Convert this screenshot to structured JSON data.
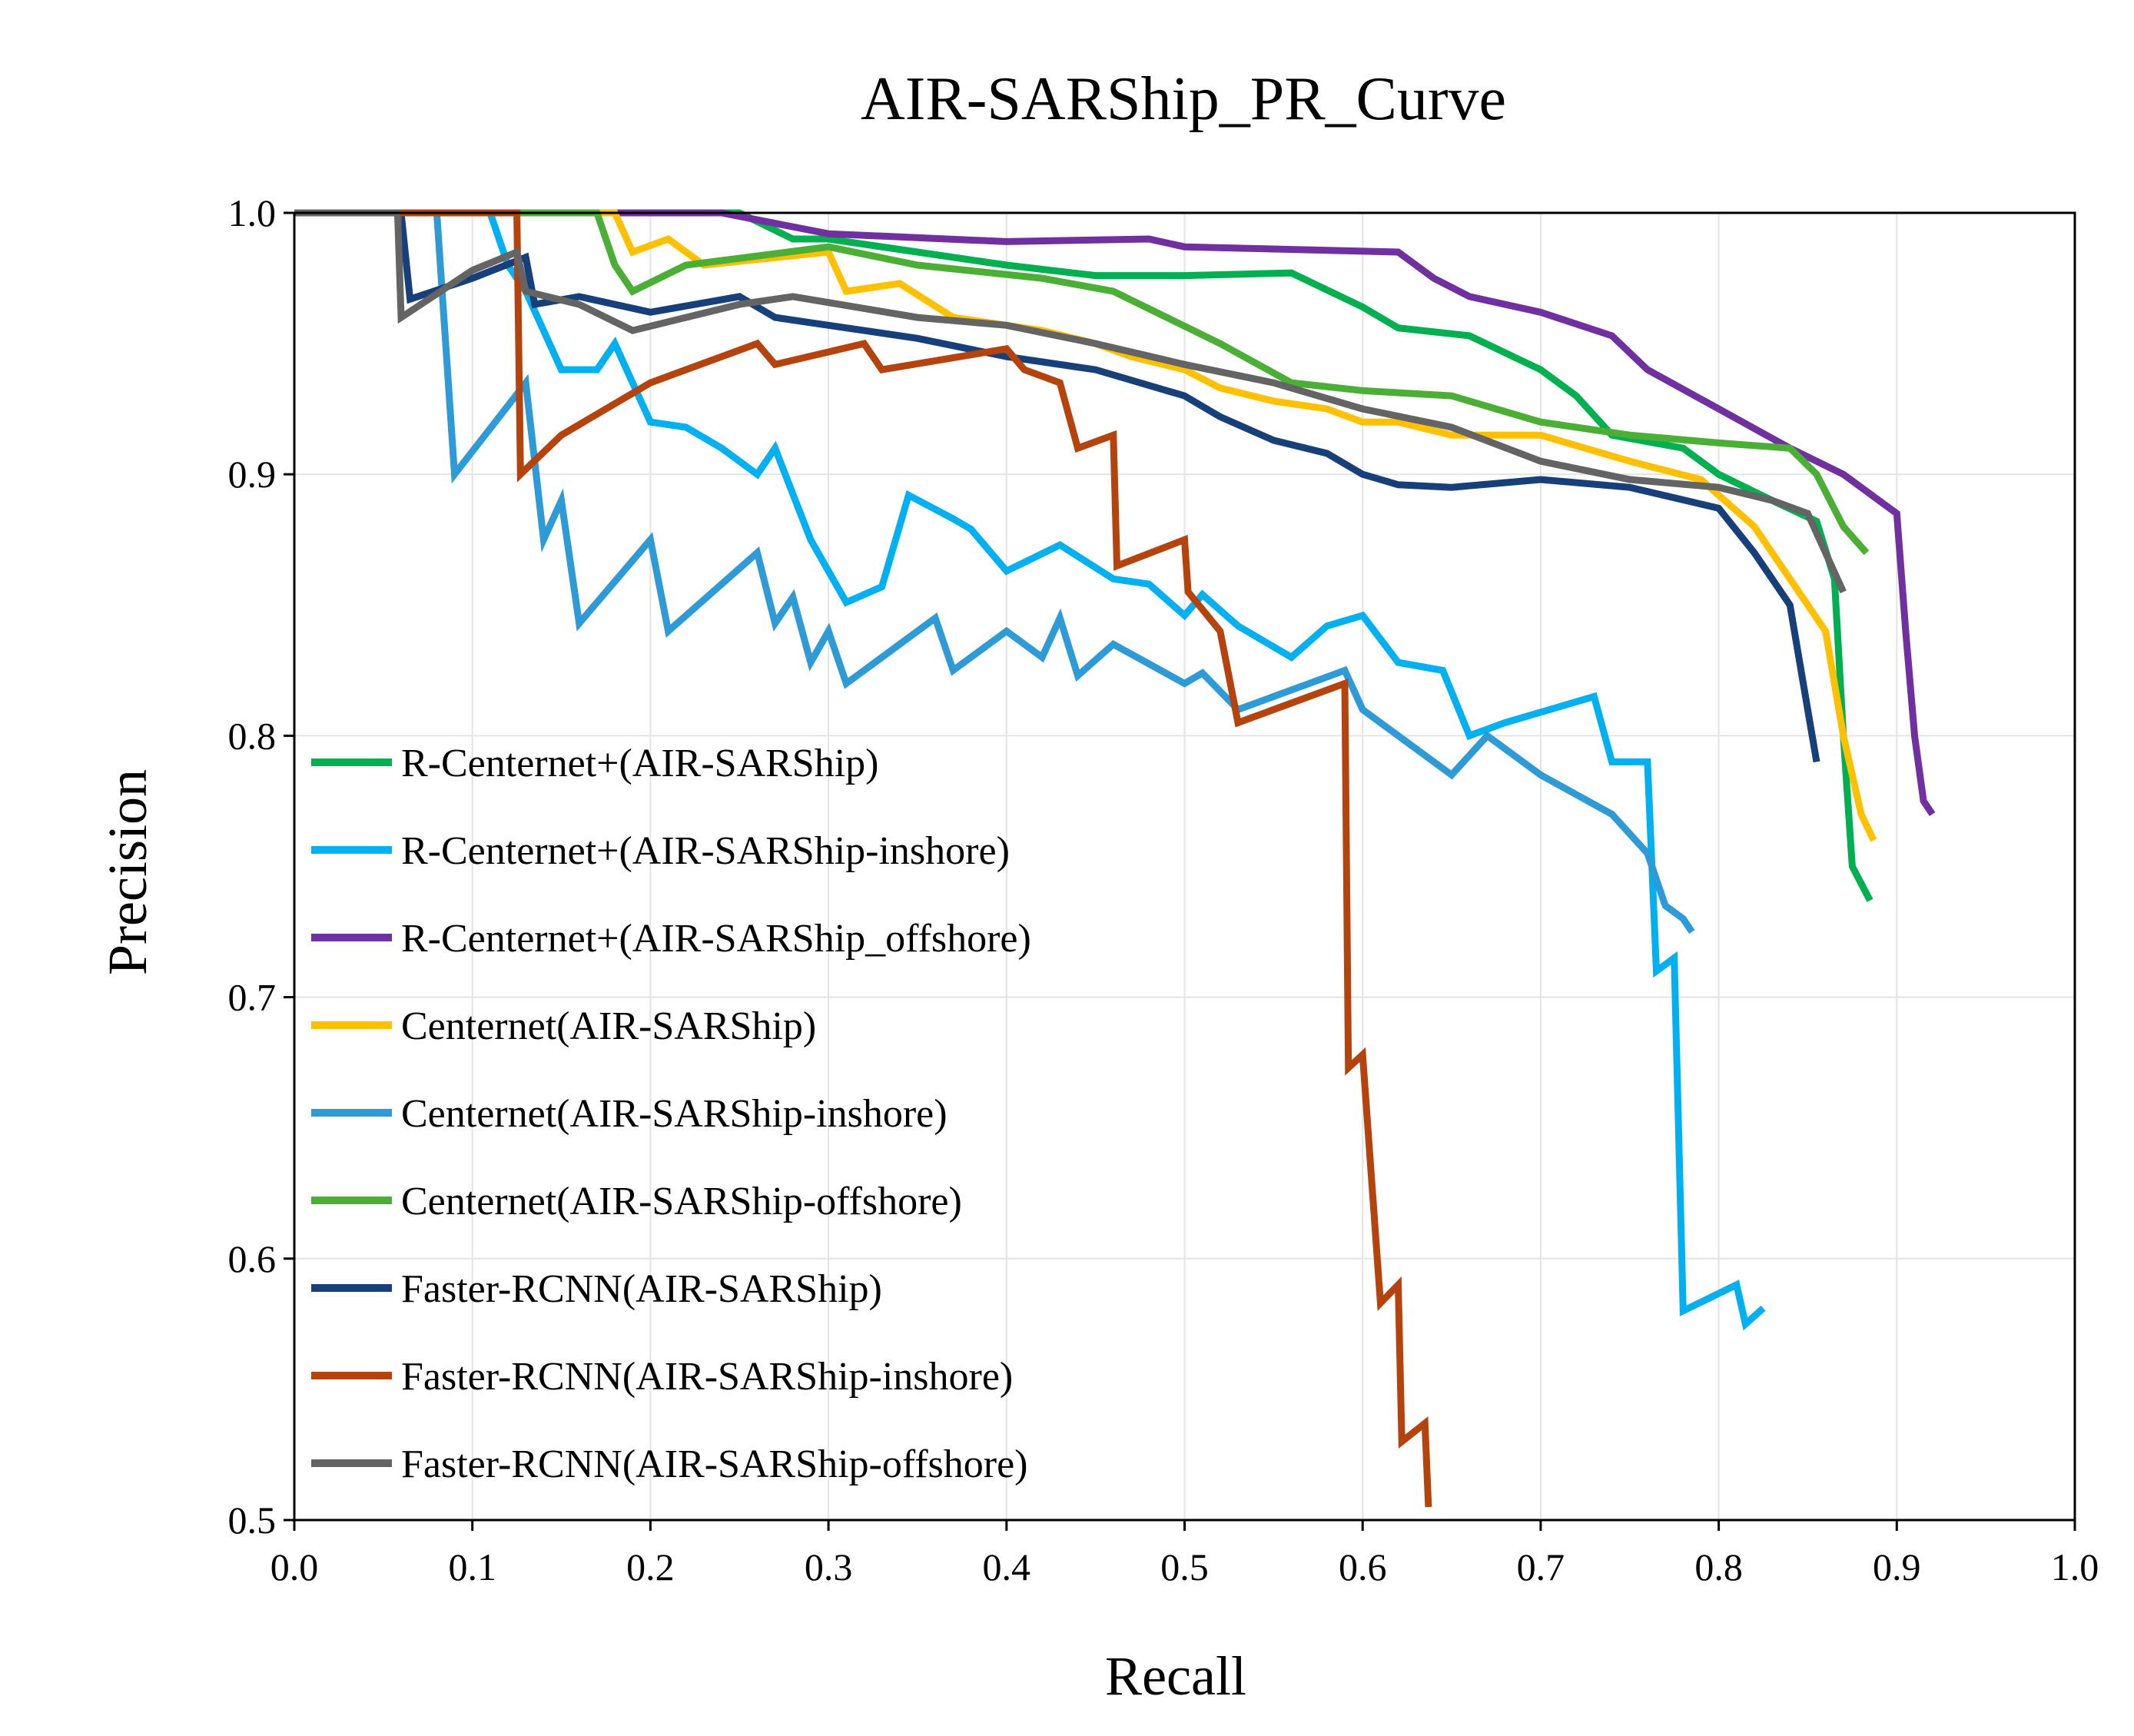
{
  "chart_data": {
    "type": "line",
    "title": "AIR-SARShip_PR_Curve",
    "xlabel": "Recall",
    "ylabel": "Precision",
    "xlim": [
      0.0,
      1.0
    ],
    "ylim": [
      0.5,
      1.0
    ],
    "xticks": [
      "0.0",
      "0.1",
      "0.2",
      "0.3",
      "0.4",
      "0.5",
      "0.6",
      "0.7",
      "0.8",
      "0.9",
      "1.0"
    ],
    "yticks": [
      "0.5",
      "0.6",
      "0.7",
      "0.8",
      "0.9",
      "1.0"
    ],
    "grid": true,
    "legend_position": "left",
    "series": [
      {
        "name": "R-Centernet+(AIR-SARShip)",
        "color": "#00b050",
        "points": [
          [
            0.0,
            1.0
          ],
          [
            0.25,
            1.0
          ],
          [
            0.28,
            0.99
          ],
          [
            0.3,
            0.99
          ],
          [
            0.35,
            0.985
          ],
          [
            0.4,
            0.98
          ],
          [
            0.45,
            0.976
          ],
          [
            0.5,
            0.976
          ],
          [
            0.56,
            0.977
          ],
          [
            0.6,
            0.964
          ],
          [
            0.62,
            0.956
          ],
          [
            0.66,
            0.953
          ],
          [
            0.7,
            0.94
          ],
          [
            0.72,
            0.93
          ],
          [
            0.74,
            0.915
          ],
          [
            0.78,
            0.91
          ],
          [
            0.8,
            0.9
          ],
          [
            0.83,
            0.89
          ],
          [
            0.855,
            0.882
          ],
          [
            0.865,
            0.86
          ],
          [
            0.87,
            0.8
          ],
          [
            0.875,
            0.75
          ],
          [
            0.885,
            0.737
          ]
        ]
      },
      {
        "name": "R-Centernet+(AIR-SARShip-inshore)",
        "color": "#00b0f0",
        "points": [
          [
            0.0,
            1.0
          ],
          [
            0.11,
            1.0
          ],
          [
            0.12,
            0.98
          ],
          [
            0.13,
            0.97
          ],
          [
            0.15,
            0.94
          ],
          [
            0.17,
            0.94
          ],
          [
            0.18,
            0.95
          ],
          [
            0.2,
            0.92
          ],
          [
            0.22,
            0.918
          ],
          [
            0.24,
            0.91
          ],
          [
            0.26,
            0.9
          ],
          [
            0.27,
            0.91
          ],
          [
            0.29,
            0.875
          ],
          [
            0.31,
            0.851
          ],
          [
            0.33,
            0.857
          ],
          [
            0.345,
            0.892
          ],
          [
            0.37,
            0.883
          ],
          [
            0.38,
            0.879
          ],
          [
            0.4,
            0.863
          ],
          [
            0.43,
            0.873
          ],
          [
            0.46,
            0.86
          ],
          [
            0.48,
            0.858
          ],
          [
            0.5,
            0.846
          ],
          [
            0.51,
            0.854
          ],
          [
            0.53,
            0.842
          ],
          [
            0.56,
            0.83
          ],
          [
            0.58,
            0.842
          ],
          [
            0.6,
            0.846
          ],
          [
            0.62,
            0.828
          ],
          [
            0.645,
            0.825
          ],
          [
            0.66,
            0.8
          ],
          [
            0.68,
            0.805
          ],
          [
            0.73,
            0.815
          ],
          [
            0.74,
            0.79
          ],
          [
            0.76,
            0.79
          ],
          [
            0.765,
            0.71
          ],
          [
            0.775,
            0.715
          ],
          [
            0.78,
            0.58
          ],
          [
            0.81,
            0.59
          ],
          [
            0.815,
            0.575
          ],
          [
            0.825,
            0.581
          ]
        ]
      },
      {
        "name": "R-Centernet+(AIR-SARShip_offshore)",
        "color": "#7030a0",
        "points": [
          [
            0.0,
            1.0
          ],
          [
            0.24,
            1.0
          ],
          [
            0.3,
            0.992
          ],
          [
            0.4,
            0.989
          ],
          [
            0.48,
            0.99
          ],
          [
            0.5,
            0.987
          ],
          [
            0.62,
            0.985
          ],
          [
            0.64,
            0.975
          ],
          [
            0.66,
            0.968
          ],
          [
            0.7,
            0.962
          ],
          [
            0.74,
            0.953
          ],
          [
            0.76,
            0.94
          ],
          [
            0.8,
            0.925
          ],
          [
            0.84,
            0.91
          ],
          [
            0.87,
            0.9
          ],
          [
            0.89,
            0.89
          ],
          [
            0.9,
            0.885
          ],
          [
            0.905,
            0.84
          ],
          [
            0.91,
            0.8
          ],
          [
            0.915,
            0.775
          ],
          [
            0.92,
            0.77
          ]
        ]
      },
      {
        "name": "Centernet(AIR-SARShip)",
        "color": "#ffc000",
        "points": [
          [
            0.0,
            1.0
          ],
          [
            0.18,
            1.0
          ],
          [
            0.19,
            0.985
          ],
          [
            0.21,
            0.99
          ],
          [
            0.23,
            0.98
          ],
          [
            0.3,
            0.985
          ],
          [
            0.31,
            0.97
          ],
          [
            0.34,
            0.973
          ],
          [
            0.37,
            0.96
          ],
          [
            0.42,
            0.955
          ],
          [
            0.45,
            0.95
          ],
          [
            0.47,
            0.945
          ],
          [
            0.5,
            0.94
          ],
          [
            0.52,
            0.933
          ],
          [
            0.55,
            0.928
          ],
          [
            0.58,
            0.925
          ],
          [
            0.6,
            0.92
          ],
          [
            0.62,
            0.92
          ],
          [
            0.65,
            0.915
          ],
          [
            0.7,
            0.915
          ],
          [
            0.75,
            0.905
          ],
          [
            0.79,
            0.898
          ],
          [
            0.82,
            0.88
          ],
          [
            0.84,
            0.86
          ],
          [
            0.86,
            0.84
          ],
          [
            0.87,
            0.8
          ],
          [
            0.88,
            0.77
          ],
          [
            0.887,
            0.76
          ]
        ]
      },
      {
        "name": "Centernet(AIR-SARShip-inshore)",
        "color": "#2e9bd6",
        "points": [
          [
            0.0,
            1.0
          ],
          [
            0.08,
            1.0
          ],
          [
            0.09,
            0.9
          ],
          [
            0.13,
            0.935
          ],
          [
            0.14,
            0.875
          ],
          [
            0.15,
            0.89
          ],
          [
            0.16,
            0.843
          ],
          [
            0.2,
            0.875
          ],
          [
            0.21,
            0.84
          ],
          [
            0.26,
            0.87
          ],
          [
            0.27,
            0.843
          ],
          [
            0.28,
            0.853
          ],
          [
            0.29,
            0.828
          ],
          [
            0.3,
            0.84
          ],
          [
            0.31,
            0.82
          ],
          [
            0.36,
            0.845
          ],
          [
            0.37,
            0.825
          ],
          [
            0.4,
            0.84
          ],
          [
            0.42,
            0.83
          ],
          [
            0.43,
            0.845
          ],
          [
            0.44,
            0.823
          ],
          [
            0.46,
            0.835
          ],
          [
            0.5,
            0.82
          ],
          [
            0.51,
            0.824
          ],
          [
            0.53,
            0.81
          ],
          [
            0.59,
            0.825
          ],
          [
            0.6,
            0.81
          ],
          [
            0.62,
            0.8
          ],
          [
            0.65,
            0.785
          ],
          [
            0.67,
            0.8
          ],
          [
            0.7,
            0.785
          ],
          [
            0.74,
            0.77
          ],
          [
            0.76,
            0.755
          ],
          [
            0.77,
            0.735
          ],
          [
            0.78,
            0.73
          ],
          [
            0.785,
            0.725
          ]
        ]
      },
      {
        "name": "Centernet(AIR-SARShip-offshore)",
        "color": "#4caf35",
        "points": [
          [
            0.0,
            1.0
          ],
          [
            0.17,
            1.0
          ],
          [
            0.18,
            0.98
          ],
          [
            0.19,
            0.97
          ],
          [
            0.22,
            0.98
          ],
          [
            0.3,
            0.987
          ],
          [
            0.35,
            0.98
          ],
          [
            0.42,
            0.975
          ],
          [
            0.46,
            0.97
          ],
          [
            0.49,
            0.96
          ],
          [
            0.52,
            0.95
          ],
          [
            0.56,
            0.935
          ],
          [
            0.6,
            0.932
          ],
          [
            0.65,
            0.93
          ],
          [
            0.7,
            0.92
          ],
          [
            0.75,
            0.915
          ],
          [
            0.8,
            0.912
          ],
          [
            0.84,
            0.91
          ],
          [
            0.855,
            0.9
          ],
          [
            0.87,
            0.88
          ],
          [
            0.883,
            0.87
          ]
        ]
      },
      {
        "name": "Faster-RCNN(AIR-SARShip)",
        "color": "#17407a",
        "points": [
          [
            0.0,
            1.0
          ],
          [
            0.06,
            1.0
          ],
          [
            0.065,
            0.967
          ],
          [
            0.1,
            0.975
          ],
          [
            0.13,
            0.983
          ],
          [
            0.135,
            0.965
          ],
          [
            0.16,
            0.968
          ],
          [
            0.2,
            0.962
          ],
          [
            0.25,
            0.968
          ],
          [
            0.27,
            0.96
          ],
          [
            0.3,
            0.957
          ],
          [
            0.35,
            0.952
          ],
          [
            0.4,
            0.945
          ],
          [
            0.45,
            0.94
          ],
          [
            0.5,
            0.93
          ],
          [
            0.52,
            0.922
          ],
          [
            0.55,
            0.913
          ],
          [
            0.58,
            0.908
          ],
          [
            0.6,
            0.9
          ],
          [
            0.62,
            0.896
          ],
          [
            0.65,
            0.895
          ],
          [
            0.7,
            0.898
          ],
          [
            0.75,
            0.895
          ],
          [
            0.8,
            0.887
          ],
          [
            0.82,
            0.87
          ],
          [
            0.84,
            0.85
          ],
          [
            0.85,
            0.81
          ],
          [
            0.855,
            0.79
          ]
        ]
      },
      {
        "name": "Faster-RCNN(AIR-SARShip-inshore)",
        "color": "#b5430d",
        "points": [
          [
            0.0,
            1.0
          ],
          [
            0.125,
            1.0
          ],
          [
            0.127,
            0.9
          ],
          [
            0.15,
            0.915
          ],
          [
            0.2,
            0.935
          ],
          [
            0.26,
            0.95
          ],
          [
            0.27,
            0.942
          ],
          [
            0.32,
            0.95
          ],
          [
            0.33,
            0.94
          ],
          [
            0.4,
            0.948
          ],
          [
            0.41,
            0.94
          ],
          [
            0.43,
            0.935
          ],
          [
            0.44,
            0.91
          ],
          [
            0.46,
            0.915
          ],
          [
            0.462,
            0.865
          ],
          [
            0.5,
            0.875
          ],
          [
            0.502,
            0.855
          ],
          [
            0.52,
            0.84
          ],
          [
            0.53,
            0.805
          ],
          [
            0.59,
            0.82
          ],
          [
            0.592,
            0.673
          ],
          [
            0.6,
            0.678
          ],
          [
            0.61,
            0.583
          ],
          [
            0.62,
            0.59
          ],
          [
            0.622,
            0.53
          ],
          [
            0.635,
            0.537
          ],
          [
            0.637,
            0.505
          ]
        ]
      },
      {
        "name": "Faster-RCNN(AIR-SARShip-offshore)",
        "color": "#646464",
        "points": [
          [
            0.0,
            1.0
          ],
          [
            0.058,
            1.0
          ],
          [
            0.06,
            0.96
          ],
          [
            0.1,
            0.978
          ],
          [
            0.125,
            0.985
          ],
          [
            0.13,
            0.97
          ],
          [
            0.16,
            0.965
          ],
          [
            0.19,
            0.955
          ],
          [
            0.25,
            0.965
          ],
          [
            0.28,
            0.968
          ],
          [
            0.35,
            0.96
          ],
          [
            0.4,
            0.957
          ],
          [
            0.45,
            0.95
          ],
          [
            0.5,
            0.942
          ],
          [
            0.55,
            0.935
          ],
          [
            0.6,
            0.925
          ],
          [
            0.65,
            0.918
          ],
          [
            0.7,
            0.905
          ],
          [
            0.75,
            0.898
          ],
          [
            0.8,
            0.895
          ],
          [
            0.83,
            0.89
          ],
          [
            0.85,
            0.885
          ],
          [
            0.86,
            0.87
          ],
          [
            0.87,
            0.855
          ]
        ]
      }
    ]
  }
}
